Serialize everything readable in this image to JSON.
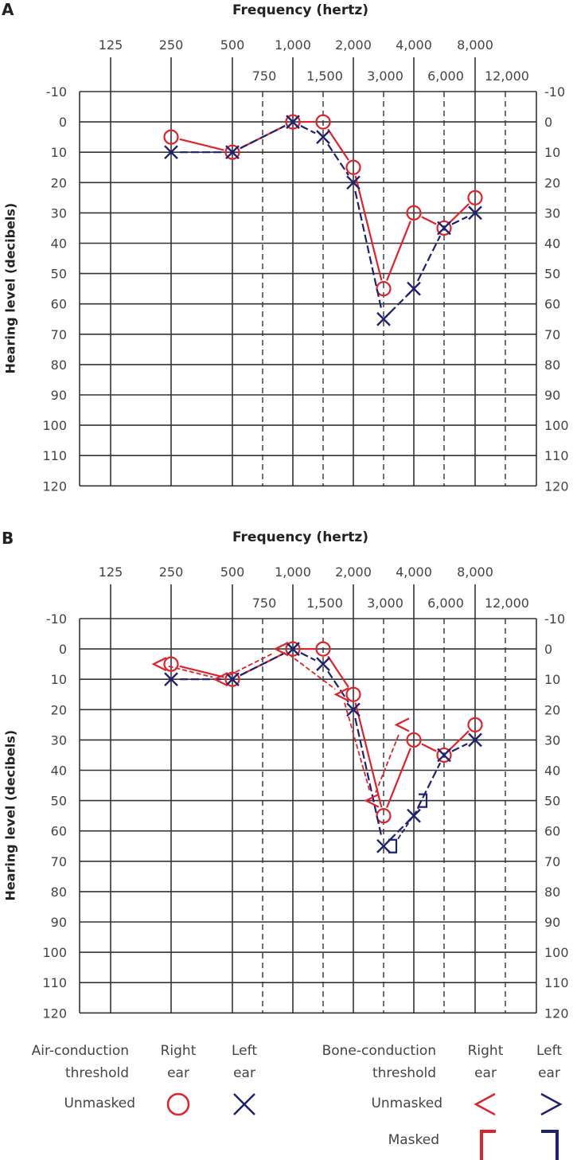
{
  "panels": [
    {
      "letter": "A",
      "xlabel": "Frequency (hertz)",
      "ylabel": "Hearing level (decibels)"
    },
    {
      "letter": "B",
      "xlabel": "Frequency (hertz)",
      "ylabel": "Hearing level (decibels)"
    }
  ],
  "legend": {
    "air": {
      "line1": "Air-conduction",
      "line2": "threshold",
      "unmasked": "Unmasked"
    },
    "bone": {
      "line1": "Bone-conduction",
      "line2": "threshold",
      "unmasked": "Unmasked",
      "masked": "Masked"
    },
    "right_ear": {
      "line1": "Right",
      "line2": "ear"
    },
    "left_ear": {
      "line1": "Left",
      "line2": "ear"
    }
  },
  "colors": {
    "right": "#e0222a",
    "left": "#1e2070",
    "grid": "#333333"
  },
  "chart_data": [
    {
      "type": "line",
      "title": "A",
      "xlabel": "Frequency (hertz)",
      "ylabel": "Hearing level (decibels)",
      "x_ticks_top": [
        "125",
        "250",
        "500",
        "1,000",
        "2,000",
        "4,000",
        "8,000"
      ],
      "x_ticks_mid": [
        "750",
        "1,500",
        "3,000",
        "6,000",
        "12,000"
      ],
      "y_ticks": [
        "-10",
        "0",
        "10",
        "20",
        "30",
        "40",
        "50",
        "60",
        "70",
        "80",
        "90",
        "100",
        "110",
        "120"
      ],
      "ylim": [
        -10,
        120
      ],
      "y_inverted": true,
      "grid": true,
      "series": [
        {
          "name": "Right ear air-conduction (unmasked)",
          "marker": "circle",
          "color": "#e0222a",
          "line": "solid",
          "x": [
            250,
            500,
            1000,
            1500,
            2000,
            3000,
            4000,
            6000,
            8000
          ],
          "values": [
            5,
            10,
            0,
            0,
            15,
            55,
            30,
            35,
            25
          ]
        },
        {
          "name": "Left ear air-conduction (unmasked)",
          "marker": "x",
          "color": "#1e2070",
          "line": "dashed",
          "x": [
            250,
            500,
            1000,
            1500,
            2000,
            3000,
            4000,
            6000,
            8000
          ],
          "values": [
            10,
            10,
            0,
            5,
            20,
            65,
            55,
            35,
            30
          ]
        }
      ]
    },
    {
      "type": "line",
      "title": "B",
      "xlabel": "Frequency (hertz)",
      "ylabel": "Hearing level (decibels)",
      "x_ticks_top": [
        "125",
        "250",
        "500",
        "1,000",
        "2,000",
        "4,000",
        "8,000"
      ],
      "x_ticks_mid": [
        "750",
        "1,500",
        "3,000",
        "6,000",
        "12,000"
      ],
      "y_ticks": [
        "-10",
        "0",
        "10",
        "20",
        "30",
        "40",
        "50",
        "60",
        "70",
        "80",
        "90",
        "100",
        "110",
        "120"
      ],
      "ylim": [
        -10,
        120
      ],
      "y_inverted": true,
      "grid": true,
      "series": [
        {
          "name": "Right ear air-conduction (unmasked)",
          "marker": "circle",
          "color": "#e0222a",
          "line": "solid",
          "x": [
            250,
            500,
            1000,
            1500,
            2000,
            3000,
            4000,
            6000,
            8000
          ],
          "values": [
            5,
            10,
            0,
            0,
            15,
            55,
            30,
            35,
            25
          ]
        },
        {
          "name": "Left ear air-conduction (unmasked)",
          "marker": "x",
          "color": "#1e2070",
          "line": "dashed",
          "x": [
            250,
            500,
            1000,
            1500,
            2000,
            3000,
            4000,
            6000,
            8000
          ],
          "values": [
            10,
            10,
            0,
            5,
            20,
            65,
            55,
            35,
            30
          ]
        },
        {
          "name": "Right ear bone-conduction (unmasked)",
          "marker": "<",
          "color": "#e0222a",
          "line": "dashed",
          "x": [
            250,
            500,
            1000,
            2000,
            3000,
            4000
          ],
          "values": [
            5,
            10,
            0,
            15,
            50,
            25
          ]
        },
        {
          "name": "Left ear bone-conduction (masked)",
          "marker": "]",
          "color": "#1e2070",
          "line": "dashed",
          "x": [
            3000,
            4000
          ],
          "values": [
            65,
            50
          ]
        }
      ]
    }
  ]
}
